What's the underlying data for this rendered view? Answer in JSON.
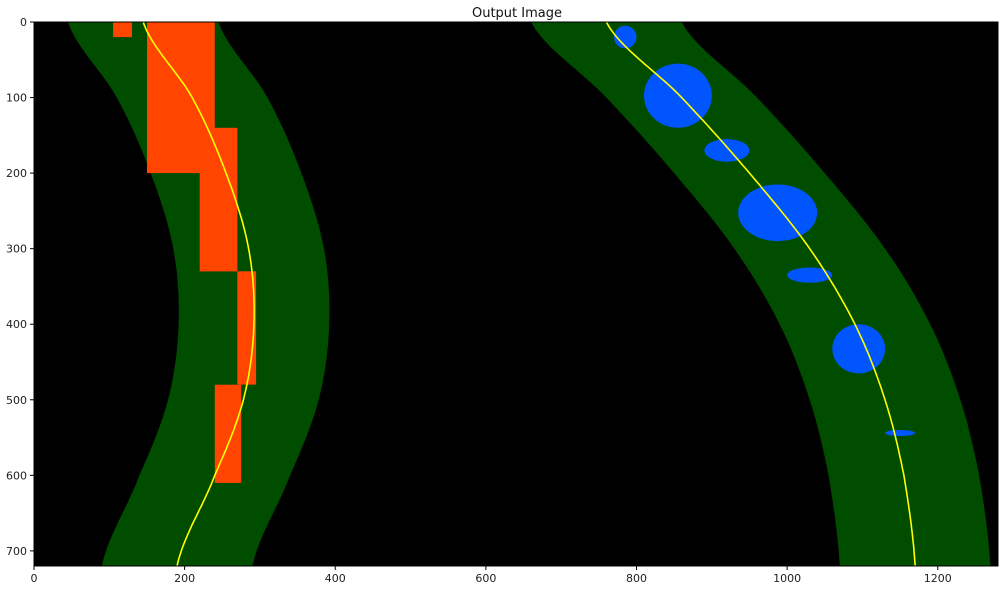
{
  "chart_data": {
    "type": "image",
    "title": "Output Image",
    "xlim": [
      0,
      1280
    ],
    "ylim": [
      720,
      0
    ],
    "x_ticks": [
      0,
      200,
      400,
      600,
      800,
      1000,
      1200
    ],
    "y_ticks": [
      0,
      100,
      200,
      300,
      400,
      500,
      600,
      700
    ],
    "grid": false,
    "background_color": "#000000",
    "band_color": "#004d00",
    "fit_line_color": "#ffff00",
    "left_pixels_color": "#ff4500",
    "right_pixels_color": "#0055ff",
    "band_half_width": 100,
    "lanes": [
      {
        "name": "left",
        "fit_points": [
          {
            "y": 0,
            "x": 145
          },
          {
            "y": 100,
            "x": 210
          },
          {
            "y": 200,
            "x": 255
          },
          {
            "y": 300,
            "x": 285
          },
          {
            "y": 400,
            "x": 292
          },
          {
            "y": 500,
            "x": 278
          },
          {
            "y": 600,
            "x": 240
          },
          {
            "y": 720,
            "x": 190
          }
        ],
        "pixel_segments": [
          {
            "y0": 0,
            "y1": 20,
            "x0": 105,
            "x1": 130
          },
          {
            "y0": 0,
            "y1": 200,
            "x0": 150,
            "x1": 240
          },
          {
            "y0": 140,
            "y1": 330,
            "x0": 220,
            "x1": 270
          },
          {
            "y0": 330,
            "y1": 480,
            "x0": 270,
            "x1": 295
          },
          {
            "y0": 480,
            "y1": 610,
            "x0": 240,
            "x1": 275
          }
        ]
      },
      {
        "name": "right",
        "fit_points": [
          {
            "y": 0,
            "x": 760
          },
          {
            "y": 100,
            "x": 860
          },
          {
            "y": 200,
            "x": 950
          },
          {
            "y": 300,
            "x": 1030
          },
          {
            "y": 400,
            "x": 1090
          },
          {
            "y": 500,
            "x": 1130
          },
          {
            "y": 600,
            "x": 1155
          },
          {
            "y": 720,
            "x": 1170
          }
        ],
        "pixel_blobs": [
          {
            "x0": 770,
            "x1": 800,
            "y0": 5,
            "y1": 35
          },
          {
            "x0": 810,
            "x1": 900,
            "y0": 55,
            "y1": 140
          },
          {
            "x0": 890,
            "x1": 950,
            "y0": 155,
            "y1": 185
          },
          {
            "x0": 935,
            "x1": 1040,
            "y0": 215,
            "y1": 290
          },
          {
            "x0": 1000,
            "x1": 1060,
            "y0": 325,
            "y1": 345
          },
          {
            "x0": 1060,
            "x1": 1130,
            "y0": 400,
            "y1": 465
          },
          {
            "x0": 1130,
            "x1": 1170,
            "y0": 540,
            "y1": 548
          }
        ]
      }
    ]
  }
}
